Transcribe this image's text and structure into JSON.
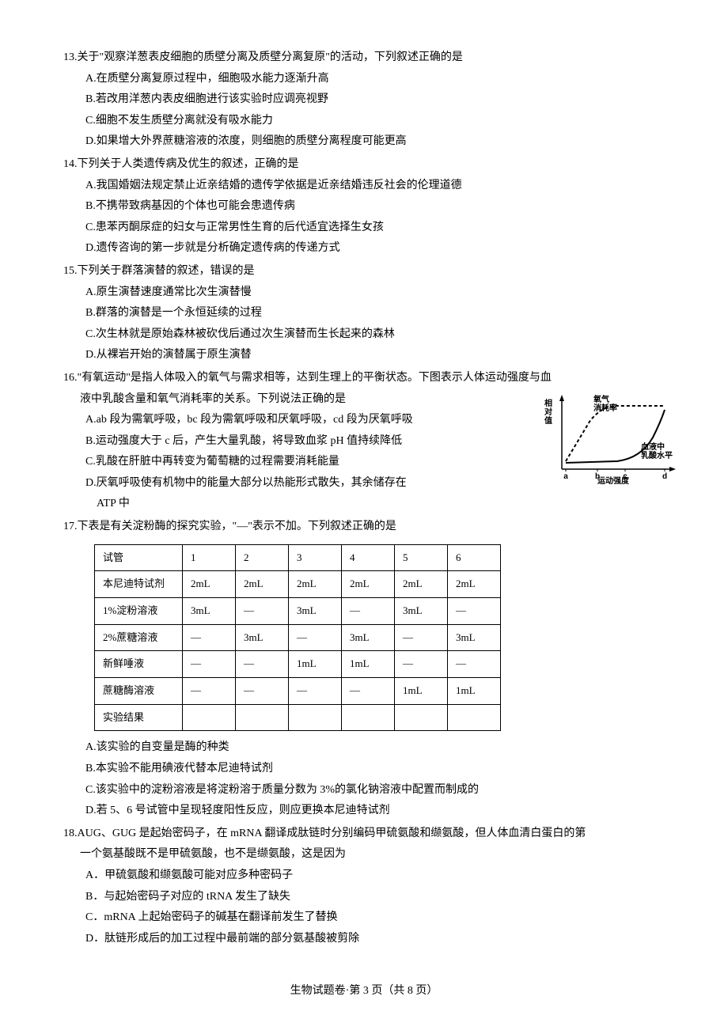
{
  "q13": {
    "stem": "13.关于\"观察洋葱表皮细胞的质壁分离及质壁分离复原\"的活动，下列叙述正确的是",
    "A": "A.在质壁分离复原过程中，细胞吸水能力逐渐升高",
    "B": "B.若改用洋葱内表皮细胞进行该实验时应调亮视野",
    "C": "C.细胞不发生质壁分离就没有吸水能力",
    "D": "D.如果增大外界蔗糖溶液的浓度，则细胞的质壁分离程度可能更高"
  },
  "q14": {
    "stem": "14.下列关于人类遗传病及优生的叙述，正确的是",
    "A": "A.我国婚姻法规定禁止近亲结婚的遗传学依据是近亲结婚违反社会的伦理道德",
    "B": "B.不携带致病基因的个体也可能会患遗传病",
    "C": "C.患苯丙酮尿症的妇女与正常男性生育的后代适宜选择生女孩",
    "D": "D.遗传咨询的第一步就是分析确定遗传病的传递方式"
  },
  "q15": {
    "stem": "15.下列关于群落演替的叙述，错误的是",
    "A": "A.原生演替速度通常比次生演替慢",
    "B": "B.群落的演替是一个永恒延续的过程",
    "C": "C.次生林就是原始森林被砍伐后通过次生演替而生长起来的森林",
    "D": "D.从裸岩开始的演替属于原生演替"
  },
  "q16": {
    "stem1": "16.\"有氧运动\"是指人体吸入的氧气与需求相等，达到生理上的平衡状态。下图表示人体运动强度与血",
    "stem2": "液中乳酸含量和氧气消耗率的关系。下列说法正确的是",
    "A": "A.ab 段为需氧呼吸，bc 段为需氧呼吸和厌氧呼吸，cd 段为厌氧呼吸",
    "B": "B.运动强度大于 c 后，产生大量乳酸，将导致血浆 pH 值持续降低",
    "C": "C.乳酸在肝脏中再转变为葡萄糖的过程需要消耗能量",
    "D": "D.厌氧呼吸使有机物中的能量大部分以热能形式散失，其余储存在",
    "D2": "ATP 中",
    "chart": {
      "y_label": "相对值",
      "x_label": "运动强度",
      "series1_label": "氧气消耗率",
      "series2_label": "血液中乳酸水平",
      "ticks": [
        "a",
        "b",
        "c",
        "d"
      ],
      "axis_color": "#000000",
      "dash_color": "#000000",
      "bg": "#ffffff",
      "line_width": 1.5,
      "dash_pattern": "4,3"
    }
  },
  "q17": {
    "stem": "17.下表是有关淀粉酶的探究实验，\"—\"表示不加。下列叙述正确的是",
    "table": {
      "header": [
        "试管",
        "1",
        "2",
        "3",
        "4",
        "5",
        "6"
      ],
      "rows": [
        [
          "本尼迪特试剂",
          "2mL",
          "2mL",
          "2mL",
          "2mL",
          "2mL",
          "2mL"
        ],
        [
          "1%淀粉溶液",
          "3mL",
          "—",
          "3mL",
          "—",
          "3mL",
          "—"
        ],
        [
          "2%蔗糖溶液",
          "—",
          "3mL",
          "—",
          "3mL",
          "—",
          "3mL"
        ],
        [
          "新鲜唾液",
          "—",
          "—",
          "1mL",
          "1mL",
          "—",
          "—"
        ],
        [
          "蔗糖酶溶液",
          "—",
          "—",
          "—",
          "—",
          "1mL",
          "1mL"
        ],
        [
          "实验结果",
          "",
          "",
          "",
          "",
          "",
          ""
        ]
      ]
    },
    "A": "A.该实验的自变量是酶的种类",
    "B": "B.本实验不能用碘液代替本尼迪特试剂",
    "C": "C.该实验中的淀粉溶液是将淀粉溶于质量分数为 3%的氯化钠溶液中配置而制成的",
    "D": "D.若 5、6 号试管中呈现轻度阳性反应，则应更换本尼迪特试剂"
  },
  "q18": {
    "stem1": "18.AUG、GUG 是起始密码子，在 mRNA 翻译成肽链时分别编码甲硫氨酸和缬氨酸，但人体血清白蛋白的第",
    "stem2": "一个氨基酸既不是甲硫氨酸，也不是缬氨酸，这是因为",
    "A": "A．甲硫氨酸和缬氨酸可能对应多种密码子",
    "B": "B．与起始密码子对应的 tRNA 发生了缺失",
    "C": "C．mRNA 上起始密码子的碱基在翻译前发生了替换",
    "D": "D．肽链形成后的加工过程中最前端的部分氨基酸被剪除"
  },
  "footer": "生物试题卷·第 3 页（共 8 页）"
}
